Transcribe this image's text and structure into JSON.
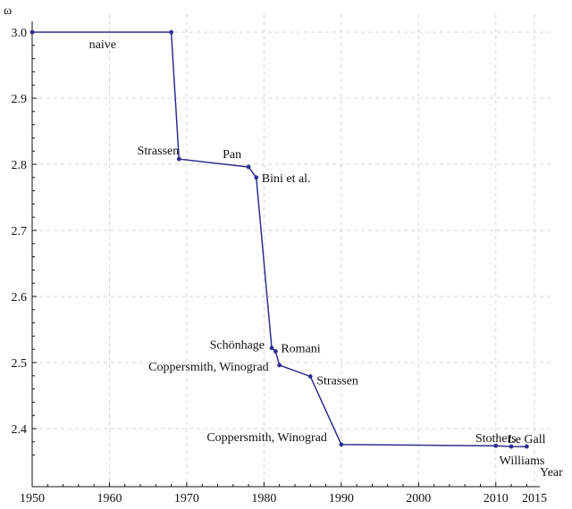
{
  "chart_data": {
    "type": "line",
    "title": "",
    "xlabel": "Year",
    "ylabel": "ω",
    "xlim": [
      1950,
      2015
    ],
    "ylim": [
      2.35,
      3.0
    ],
    "x_ticks": [
      1950,
      1960,
      1970,
      1980,
      1990,
      2000,
      2010,
      2015
    ],
    "y_ticks": [
      2.4,
      2.5,
      2.6,
      2.7,
      2.8,
      2.9,
      3.0
    ],
    "x_tick_labels": [
      "1950",
      "1960",
      "1970",
      "1980",
      "1990",
      "2000",
      "2010",
      "2015"
    ],
    "y_tick_labels": [
      "2.4",
      "2.5",
      "2.6",
      "2.7",
      "2.8",
      "2.9",
      "3.0"
    ],
    "grid": true,
    "series": [
      {
        "color": "#2e2e8f",
        "points": [
          {
            "x": 1950,
            "y": 3.0,
            "label": "",
            "label_pos": "none"
          },
          {
            "x": 1968,
            "y": 3.0,
            "label": "naive",
            "label_pos": "below-left-far"
          },
          {
            "x": 1969,
            "y": 2.808,
            "label": "Strassen",
            "label_pos": "above-left"
          },
          {
            "x": 1978,
            "y": 2.796,
            "label": "Pan",
            "label_pos": "above-left"
          },
          {
            "x": 1979,
            "y": 2.78,
            "label": "Bini et al.",
            "label_pos": "right"
          },
          {
            "x": 1981,
            "y": 2.522,
            "label": "Schönhage",
            "label_pos": "left"
          },
          {
            "x": 1981.5,
            "y": 2.517,
            "label": "Romani",
            "label_pos": "right"
          },
          {
            "x": 1982,
            "y": 2.496,
            "label": "Coppersmith, Winograd",
            "label_pos": "left"
          },
          {
            "x": 1986,
            "y": 2.479,
            "label": "Strassen",
            "label_pos": "right"
          },
          {
            "x": 1990,
            "y": 2.376,
            "label": "Coppersmith, Winograd",
            "label_pos": "above-left"
          },
          {
            "x": 2010,
            "y": 2.374,
            "label": "Stothers",
            "label_pos": "above"
          },
          {
            "x": 2012,
            "y": 2.3729,
            "label": "Williams",
            "label_pos": "below"
          },
          {
            "x": 2014,
            "y": 2.3728639,
            "label": "Le Gall",
            "label_pos": "above"
          }
        ]
      }
    ]
  }
}
